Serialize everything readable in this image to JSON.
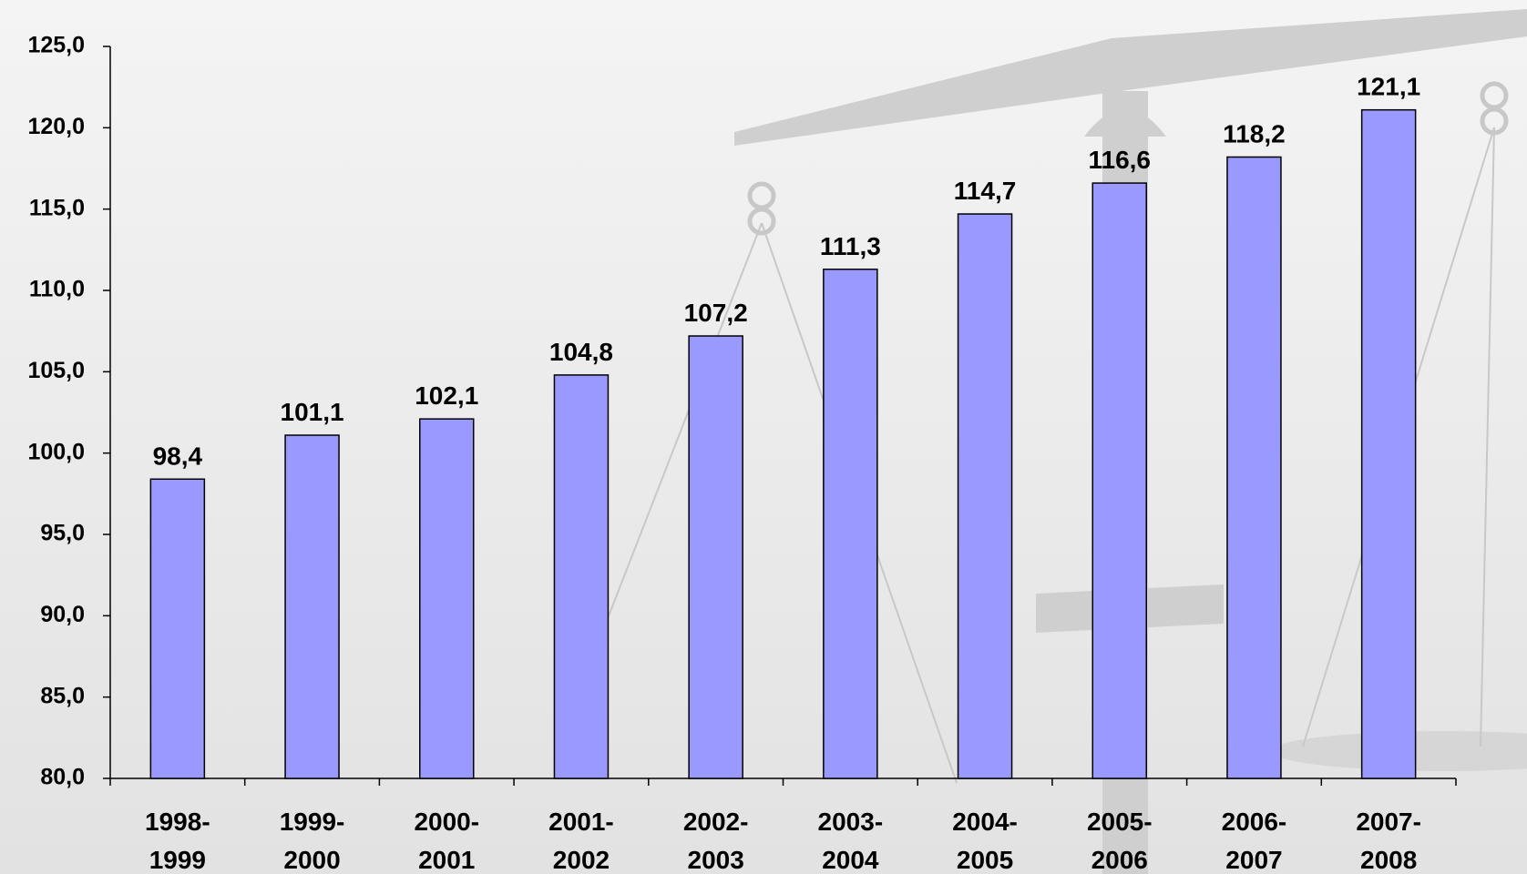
{
  "chart_data": {
    "type": "bar",
    "categories": [
      "1998-1999",
      "1999-2000",
      "2000-2001",
      "2001-2002",
      "2002-2003",
      "2003-2004",
      "2004-2005",
      "2005-2006",
      "2006-2007",
      "2007-2008"
    ],
    "values": [
      98.4,
      101.1,
      102.1,
      104.8,
      107.2,
      111.3,
      114.7,
      116.6,
      118.2,
      121.1
    ],
    "value_labels": [
      "98,4",
      "101,1",
      "102,1",
      "104,8",
      "107,2",
      "111,3",
      "114,7",
      "116,6",
      "118,2",
      "121,1"
    ],
    "color": "#9999ff",
    "ylim": [
      80,
      125
    ],
    "yticks": [
      {
        "value": 80,
        "label": "80,0"
      },
      {
        "value": 85,
        "label": "85,0"
      },
      {
        "value": 90,
        "label": "90,0"
      },
      {
        "value": 95,
        "label": "95,0"
      },
      {
        "value": 100,
        "label": "100,0"
      },
      {
        "value": 105,
        "label": "105,0"
      },
      {
        "value": 110,
        "label": "110,0"
      },
      {
        "value": 115,
        "label": "115,0"
      },
      {
        "value": 120,
        "label": "120,0"
      },
      {
        "value": 125,
        "label": "125,0"
      }
    ]
  }
}
